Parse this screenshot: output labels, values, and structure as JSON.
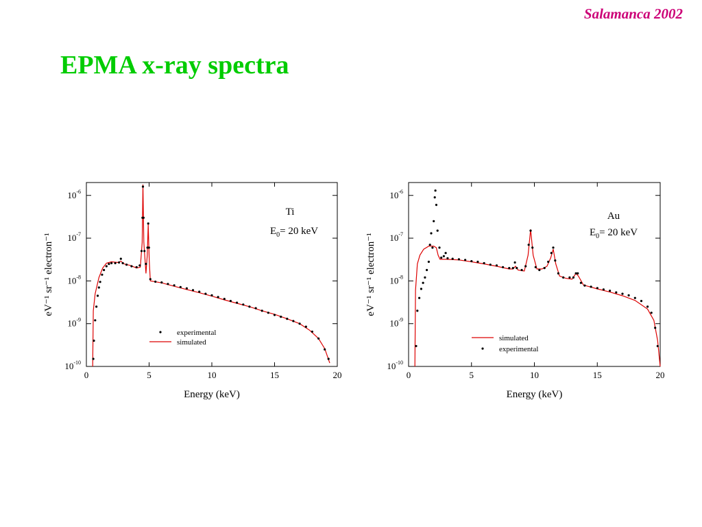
{
  "header": {
    "corner_label": "Salamanca 2002",
    "title": "EPMA x-ray spectra"
  },
  "chart_data": [
    {
      "type": "scatter",
      "scale": {
        "x": "linear",
        "y": "log"
      },
      "annotation": [
        "Ti",
        "E",
        "0",
        "= 20 keV"
      ],
      "xlabel": "Energy (keV)",
      "ylabel": "eV⁻¹ sr⁻¹ electron⁻¹",
      "xlim": [
        0,
        20
      ],
      "ylim": [
        1e-10,
        2e-06
      ],
      "x_ticks": [
        0,
        5,
        10,
        15,
        20
      ],
      "y_ticks": [
        {
          "value": 1e-10,
          "base": "10",
          "exp": "-10"
        },
        {
          "value": 1e-09,
          "base": "10",
          "exp": "-9"
        },
        {
          "value": 1e-08,
          "base": "10",
          "exp": "-8"
        },
        {
          "value": 1e-07,
          "base": "10",
          "exp": "-7"
        },
        {
          "value": 1e-06,
          "base": "10",
          "exp": "-6"
        }
      ],
      "legend": {
        "placement": "bottom-center",
        "items": [
          "experimental",
          "simulated"
        ]
      },
      "series": [
        {
          "name": "simulated",
          "style": "line",
          "color": "#dd0000",
          "points": [
            [
              0.5,
              1e-10
            ],
            [
              0.55,
              2e-09
            ],
            [
              0.7,
              5e-09
            ],
            [
              1.0,
              1.2e-08
            ],
            [
              1.3,
              2e-08
            ],
            [
              1.6,
              2.6e-08
            ],
            [
              2.0,
              2.8e-08
            ],
            [
              2.5,
              2.7e-08
            ],
            [
              2.75,
              2.9e-08
            ],
            [
              3.0,
              2.5e-08
            ],
            [
              3.5,
              2.3e-08
            ],
            [
              4.0,
              2e-08
            ],
            [
              4.3,
              2.1e-08
            ],
            [
              4.45,
              8e-08
            ],
            [
              4.51,
              1.8e-06
            ],
            [
              4.58,
              8e-08
            ],
            [
              4.75,
              1.5e-08
            ],
            [
              4.85,
              4e-08
            ],
            [
              4.93,
              2.1e-07
            ],
            [
              5.01,
              3e-08
            ],
            [
              5.1,
              1e-08
            ],
            [
              6,
              9e-09
            ],
            [
              7,
              7.5e-09
            ],
            [
              8,
              6.3e-09
            ],
            [
              9,
              5.3e-09
            ],
            [
              10,
              4.4e-09
            ],
            [
              11,
              3.6e-09
            ],
            [
              12,
              3e-09
            ],
            [
              13,
              2.5e-09
            ],
            [
              14,
              2e-09
            ],
            [
              15,
              1.65e-09
            ],
            [
              16,
              1.3e-09
            ],
            [
              17,
              1e-09
            ],
            [
              17.8,
              7e-10
            ],
            [
              18.5,
              4.5e-10
            ],
            [
              19,
              2.6e-10
            ],
            [
              19.4,
              1.2e-10
            ]
          ]
        },
        {
          "name": "experimental",
          "style": "dots",
          "color": "#000000",
          "points": [
            [
              0.55,
              1.5e-10
            ],
            [
              0.6,
              4e-10
            ],
            [
              0.7,
              1.2e-09
            ],
            [
              0.8,
              2.5e-09
            ],
            [
              0.9,
              4.5e-09
            ],
            [
              1.0,
              7e-09
            ],
            [
              1.1,
              9.5e-09
            ],
            [
              1.25,
              1.4e-08
            ],
            [
              1.4,
              1.8e-08
            ],
            [
              1.6,
              2.2e-08
            ],
            [
              1.8,
              2.5e-08
            ],
            [
              2.0,
              2.6e-08
            ],
            [
              2.3,
              2.6e-08
            ],
            [
              2.6,
              2.7e-08
            ],
            [
              2.75,
              3.3e-08
            ],
            [
              2.9,
              2.6e-08
            ],
            [
              3.2,
              2.4e-08
            ],
            [
              3.6,
              2.2e-08
            ],
            [
              4.0,
              2.1e-08
            ],
            [
              4.25,
              2.3e-08
            ],
            [
              4.4,
              5e-08
            ],
            [
              4.47,
              3e-07
            ],
            [
              4.51,
              1.6e-06
            ],
            [
              4.56,
              3e-07
            ],
            [
              4.63,
              5e-08
            ],
            [
              4.75,
              2.5e-08
            ],
            [
              4.87,
              6e-08
            ],
            [
              4.93,
              2.2e-07
            ],
            [
              4.99,
              6e-08
            ],
            [
              5.1,
              1.1e-08
            ],
            [
              5.5,
              9.6e-09
            ],
            [
              6,
              9.2e-09
            ],
            [
              6.5,
              8.5e-09
            ],
            [
              7,
              7.9e-09
            ],
            [
              7.5,
              7.2e-09
            ],
            [
              8,
              6.7e-09
            ],
            [
              8.5,
              6.1e-09
            ],
            [
              9,
              5.6e-09
            ],
            [
              9.5,
              5e-09
            ],
            [
              10,
              4.6e-09
            ],
            [
              10.5,
              4.2e-09
            ],
            [
              11,
              3.8e-09
            ],
            [
              11.5,
              3.4e-09
            ],
            [
              12,
              3.1e-09
            ],
            [
              12.5,
              2.8e-09
            ],
            [
              13,
              2.5e-09
            ],
            [
              13.5,
              2.3e-09
            ],
            [
              14,
              2e-09
            ],
            [
              14.5,
              1.8e-09
            ],
            [
              15,
              1.6e-09
            ],
            [
              15.5,
              1.45e-09
            ],
            [
              16,
              1.3e-09
            ],
            [
              16.5,
              1.15e-09
            ],
            [
              17,
              1e-09
            ],
            [
              17.5,
              8.5e-10
            ],
            [
              18,
              6.5e-10
            ],
            [
              18.5,
              4.5e-10
            ],
            [
              19,
              2.5e-10
            ],
            [
              19.3,
              1.5e-10
            ]
          ]
        }
      ]
    },
    {
      "type": "scatter",
      "scale": {
        "x": "linear",
        "y": "log"
      },
      "annotation": [
        "Au",
        "E",
        "0",
        "= 20 keV"
      ],
      "xlabel": "Energy (keV)",
      "ylabel": "eV⁻¹ sr⁻¹ electron⁻¹",
      "xlim": [
        0,
        20
      ],
      "ylim": [
        1e-10,
        2e-06
      ],
      "x_ticks": [
        0,
        5,
        10,
        15,
        20
      ],
      "y_ticks": [
        {
          "value": 1e-10,
          "base": "10",
          "exp": "-10"
        },
        {
          "value": 1e-09,
          "base": "10",
          "exp": "-9"
        },
        {
          "value": 1e-08,
          "base": "10",
          "exp": "-8"
        },
        {
          "value": 1e-07,
          "base": "10",
          "exp": "-7"
        },
        {
          "value": 1e-06,
          "base": "10",
          "exp": "-6"
        }
      ],
      "legend": {
        "placement": "bottom-center",
        "items": [
          "simulated",
          "experimental"
        ]
      },
      "series": [
        {
          "name": "simulated",
          "style": "line",
          "color": "#dd0000",
          "points": [
            [
              0.5,
              1e-10
            ],
            [
              0.55,
              6e-09
            ],
            [
              0.7,
              2.5e-08
            ],
            [
              0.9,
              4e-08
            ],
            [
              1.2,
              5.5e-08
            ],
            [
              1.6,
              6.5e-08
            ],
            [
              2.0,
              6.5e-08
            ],
            [
              2.2,
              6e-08
            ],
            [
              2.35,
              4e-08
            ],
            [
              2.5,
              3.2e-08
            ],
            [
              3,
              3.2e-08
            ],
            [
              4,
              3.1e-08
            ],
            [
              5,
              2.8e-08
            ],
            [
              6,
              2.5e-08
            ],
            [
              7,
              2.2e-08
            ],
            [
              8,
              1.9e-08
            ],
            [
              8.3,
              1.9e-08
            ],
            [
              8.5,
              2.2e-08
            ],
            [
              8.7,
              1.8e-08
            ],
            [
              9.2,
              1.7e-08
            ],
            [
              9.5,
              4e-08
            ],
            [
              9.7,
              1.6e-07
            ],
            [
              9.9,
              4e-08
            ],
            [
              10.2,
              1.9e-08
            ],
            [
              10.6,
              1.9e-08
            ],
            [
              11.0,
              2.2e-08
            ],
            [
              11.3,
              3.5e-08
            ],
            [
              11.5,
              5.5e-08
            ],
            [
              11.7,
              2.5e-08
            ],
            [
              12.0,
              1.3e-08
            ],
            [
              12.5,
              1.15e-08
            ],
            [
              13.0,
              1.1e-08
            ],
            [
              13.3,
              1.5e-08
            ],
            [
              13.5,
              1.3e-08
            ],
            [
              13.9,
              8e-09
            ],
            [
              15,
              6.5e-09
            ],
            [
              16,
              5.5e-09
            ],
            [
              17,
              4.5e-09
            ],
            [
              18,
              3.5e-09
            ],
            [
              19,
              2.2e-09
            ],
            [
              19.5,
              1.2e-09
            ],
            [
              19.8,
              4e-10
            ],
            [
              20,
              1e-10
            ]
          ]
        },
        {
          "name": "experimental",
          "style": "dots",
          "color": "#000000",
          "points": [
            [
              0.6,
              3e-10
            ],
            [
              0.7,
              2e-09
            ],
            [
              0.85,
              4e-09
            ],
            [
              1.0,
              6.5e-09
            ],
            [
              1.15,
              9e-09
            ],
            [
              1.3,
              1.2e-08
            ],
            [
              1.45,
              1.8e-08
            ],
            [
              1.6,
              2.8e-08
            ],
            [
              1.7,
              7e-08
            ],
            [
              1.8,
              1.3e-07
            ],
            [
              1.9,
              6e-08
            ],
            [
              2.0,
              2.5e-07
            ],
            [
              2.08,
              9e-07
            ],
            [
              2.13,
              1.3e-06
            ],
            [
              2.2,
              6e-07
            ],
            [
              2.3,
              1.5e-07
            ],
            [
              2.45,
              6e-08
            ],
            [
              2.6,
              3.5e-08
            ],
            [
              2.8,
              3.8e-08
            ],
            [
              2.95,
              4.5e-08
            ],
            [
              3.1,
              3.4e-08
            ],
            [
              3.5,
              3.3e-08
            ],
            [
              4,
              3.2e-08
            ],
            [
              4.5,
              3.1e-08
            ],
            [
              5,
              2.9e-08
            ],
            [
              5.5,
              2.8e-08
            ],
            [
              6,
              2.6e-08
            ],
            [
              6.5,
              2.4e-08
            ],
            [
              7,
              2.3e-08
            ],
            [
              7.5,
              2.1e-08
            ],
            [
              8,
              2e-08
            ],
            [
              8.3,
              2e-08
            ],
            [
              8.45,
              2.7e-08
            ],
            [
              8.6,
              2e-08
            ],
            [
              9.0,
              1.8e-08
            ],
            [
              9.3,
              2.2e-08
            ],
            [
              9.55,
              7e-08
            ],
            [
              9.7,
              1.5e-07
            ],
            [
              9.85,
              6e-08
            ],
            [
              10.1,
              2.1e-08
            ],
            [
              10.4,
              1.8e-08
            ],
            [
              10.8,
              2e-08
            ],
            [
              11.1,
              2.8e-08
            ],
            [
              11.35,
              4.5e-08
            ],
            [
              11.5,
              6e-08
            ],
            [
              11.65,
              3e-08
            ],
            [
              11.9,
              1.5e-08
            ],
            [
              12.3,
              1.2e-08
            ],
            [
              12.8,
              1.2e-08
            ],
            [
              13.1,
              1.2e-08
            ],
            [
              13.3,
              1.5e-08
            ],
            [
              13.45,
              1.5e-08
            ],
            [
              13.7,
              9e-09
            ],
            [
              14,
              7.8e-09
            ],
            [
              14.5,
              7.3e-09
            ],
            [
              15,
              6.8e-09
            ],
            [
              15.5,
              6.3e-09
            ],
            [
              16,
              5.9e-09
            ],
            [
              16.5,
              5.4e-09
            ],
            [
              17,
              5e-09
            ],
            [
              17.5,
              4.6e-09
            ],
            [
              18,
              4e-09
            ],
            [
              18.5,
              3.4e-09
            ],
            [
              19,
              2.5e-09
            ],
            [
              19.3,
              1.8e-09
            ],
            [
              19.6,
              8e-10
            ],
            [
              19.8,
              3e-10
            ]
          ]
        }
      ]
    }
  ]
}
